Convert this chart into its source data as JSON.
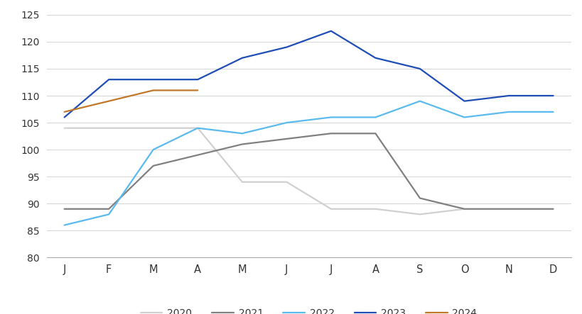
{
  "months": [
    "J",
    "F",
    "M",
    "A",
    "M",
    "J",
    "J",
    "A",
    "S",
    "O",
    "N",
    "D"
  ],
  "series": {
    "2020": [
      104,
      104,
      104,
      104,
      94,
      94,
      89,
      89,
      88,
      89,
      null,
      null
    ],
    "2021": [
      89,
      89,
      97,
      99,
      101,
      102,
      103,
      103,
      91,
      89,
      89,
      89
    ],
    "2022": [
      86,
      88,
      100,
      104,
      103,
      105,
      106,
      106,
      109,
      106,
      107,
      107
    ],
    "2023": [
      106,
      113,
      113,
      113,
      117,
      119,
      122,
      117,
      115,
      109,
      110,
      110
    ],
    "2024": [
      107,
      109,
      111,
      111,
      null,
      null,
      null,
      null,
      null,
      null,
      null,
      null
    ]
  },
  "colors": {
    "2020": "#d0d0d0",
    "2021": "#808080",
    "2022": "#5abaee",
    "2023": "#1e4db5",
    "2024": "#c07828"
  },
  "ylim": [
    80,
    126
  ],
  "yticks": [
    80,
    85,
    90,
    95,
    100,
    105,
    110,
    115,
    120,
    125
  ],
  "background_color": "#ffffff",
  "grid_color": "#d8d8d8",
  "linewidth": 1.6
}
